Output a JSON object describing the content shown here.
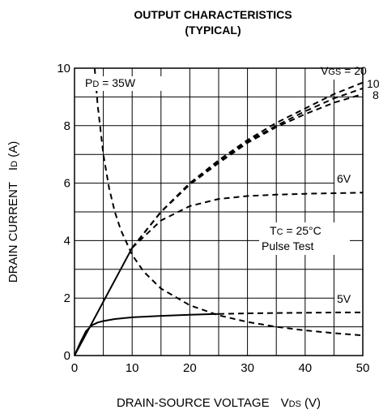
{
  "chart_data": {
    "type": "line",
    "title": [
      "OUTPUT CHARACTERISTICS",
      "(TYPICAL)"
    ],
    "xlabel": {
      "main": "DRAIN-SOURCE VOLTAGE",
      "sym": "V",
      "sub": "DS",
      "unit": " (V)"
    },
    "ylabel": {
      "main": "DRAIN CURRENT",
      "sym": "I",
      "sub": "D",
      "unit": " (A)"
    },
    "xlim": [
      0,
      50
    ],
    "ylim": [
      0,
      10
    ],
    "xticks": [
      0,
      10,
      20,
      30,
      40,
      50
    ],
    "yticks": [
      0,
      2,
      4,
      6,
      8,
      10
    ],
    "grid": true,
    "series": [
      {
        "name": "VGS = 20",
        "style": "linear-solid",
        "x": [
          0,
          10
        ],
        "y": [
          0,
          3.75
        ]
      },
      {
        "name": "VGS = 20",
        "style": "dashed",
        "x": [
          10,
          15,
          20,
          25,
          30,
          35,
          40,
          45,
          50
        ],
        "y": [
          3.75,
          5.0,
          6.0,
          6.8,
          7.5,
          8.1,
          8.6,
          9.1,
          9.5
        ]
      },
      {
        "name": "10",
        "style": "dashed",
        "x": [
          10,
          15,
          20,
          25,
          30,
          35,
          40,
          45,
          50
        ],
        "y": [
          3.75,
          5.0,
          6.0,
          6.75,
          7.45,
          8.0,
          8.5,
          8.95,
          9.3
        ]
      },
      {
        "name": "8",
        "style": "dashed",
        "x": [
          10,
          15,
          20,
          25,
          30,
          35,
          40,
          45,
          50
        ],
        "y": [
          3.75,
          5.0,
          5.95,
          6.7,
          7.4,
          7.95,
          8.4,
          8.8,
          9.1
        ]
      },
      {
        "name": "6V",
        "style": "dashed",
        "x": [
          10,
          15,
          20,
          25,
          30,
          35,
          40,
          45,
          50
        ],
        "y": [
          3.75,
          4.7,
          5.2,
          5.45,
          5.55,
          5.6,
          5.63,
          5.65,
          5.67
        ]
      },
      {
        "name": "5V",
        "style": "solid",
        "x": [
          0,
          1,
          2,
          3,
          4,
          5,
          7,
          10,
          15,
          20,
          25
        ],
        "y": [
          0,
          0.45,
          0.85,
          1.05,
          1.15,
          1.2,
          1.27,
          1.33,
          1.38,
          1.42,
          1.45
        ]
      },
      {
        "name": "5V",
        "style": "dashed",
        "x": [
          25,
          30,
          35,
          40,
          45,
          50
        ],
        "y": [
          1.45,
          1.47,
          1.48,
          1.49,
          1.5,
          1.5
        ]
      },
      {
        "name": "PD = 35W",
        "style": "dashed",
        "x": [
          3.5,
          4,
          5,
          6,
          7,
          8,
          10,
          12,
          15,
          20,
          25,
          30,
          35,
          40,
          45,
          50
        ],
        "y": [
          10,
          8.75,
          7.0,
          5.83,
          5.0,
          4.38,
          3.5,
          2.92,
          2.33,
          1.75,
          1.4,
          1.17,
          1.0,
          0.875,
          0.78,
          0.7
        ]
      }
    ],
    "annotations": {
      "pd": {
        "sym": "P",
        "sub": "D",
        "text": " = 35W"
      },
      "vgs": {
        "sym": "V",
        "sub": "GS",
        "text": " = 20"
      },
      "v10": "10",
      "v8": "8",
      "v6": "6V",
      "v5": "5V",
      "tc": {
        "sym": "T",
        "sub": "C",
        "text": " = 25°C"
      },
      "pulse": "Pulse Test"
    }
  }
}
